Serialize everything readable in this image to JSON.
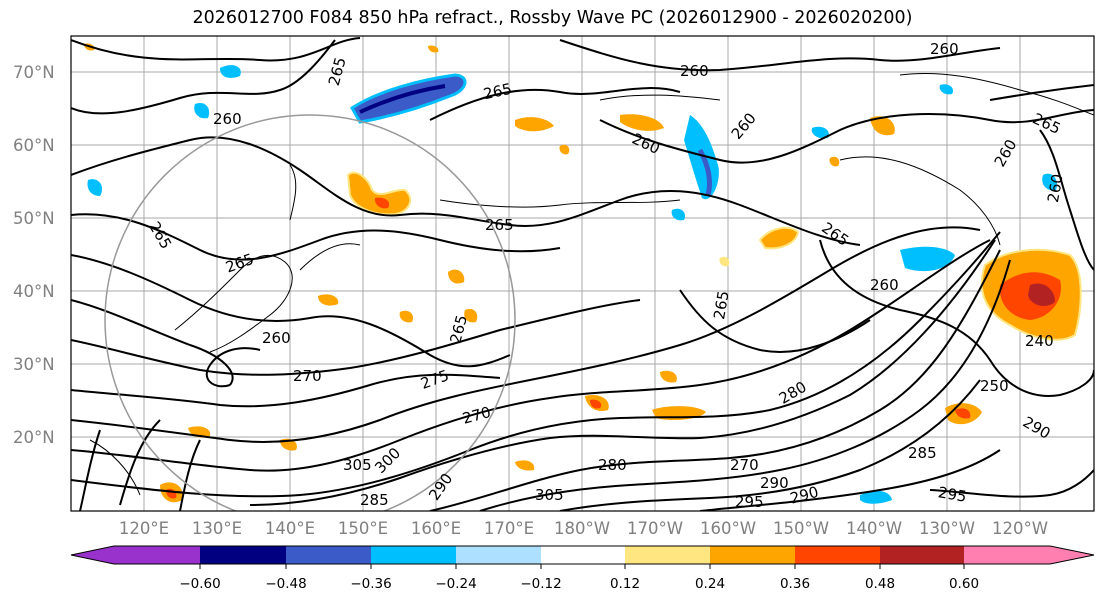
{
  "title": "2026012700 F084 850 hPa refract., Rossby Wave PC (2026012900 - 2026020200)",
  "map": {
    "lat_labels": [
      "70°N",
      "60°N",
      "50°N",
      "40°N",
      "30°N",
      "20°N"
    ],
    "lon_labels": [
      "120°E",
      "130°E",
      "140°E",
      "150°E",
      "160°E",
      "170°E",
      "180°W",
      "170°W",
      "160°W",
      "150°W",
      "140°W",
      "130°W",
      "120°W"
    ],
    "contour_labels": [
      "260",
      "265",
      "260",
      "265",
      "260",
      "260",
      "265",
      "260",
      "265",
      "265",
      "260",
      "260",
      "265",
      "270",
      "275",
      "270",
      "305",
      "300",
      "295",
      "290",
      "285",
      "280",
      "290",
      "295",
      "285",
      "250",
      "260",
      "240",
      "290"
    ]
  },
  "colorbar": {
    "tick_labels": [
      "−0.60",
      "−0.48",
      "−0.36",
      "−0.24",
      "−0.12",
      "0.12",
      "0.24",
      "0.36",
      "0.48",
      "0.60"
    ],
    "colors": [
      "#9932CC",
      "#000080",
      "#3A5BC8",
      "#00BFFF",
      "#ADDFFF",
      "#FFFFFF",
      "#FFE680",
      "#FFA500",
      "#FF4500",
      "#B22222",
      "#FF80B0"
    ]
  }
}
